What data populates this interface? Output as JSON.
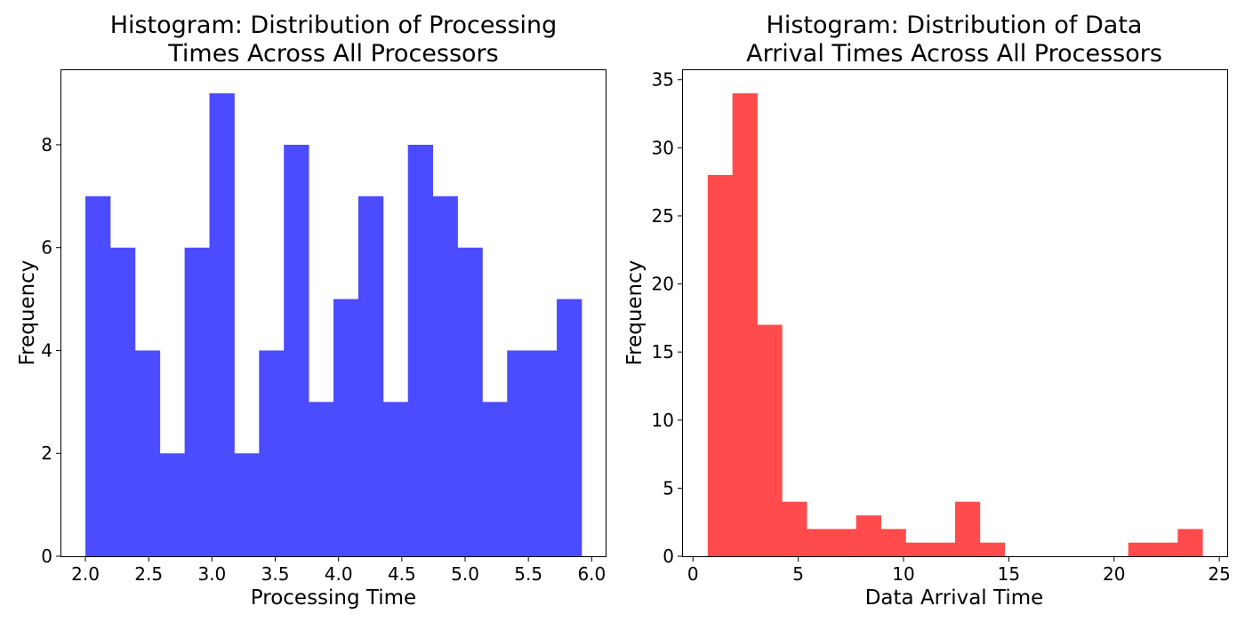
{
  "chart_data": [
    {
      "type": "bar",
      "title": "Histogram: Distribution of Processing Times Across All Processors",
      "title_lines": [
        "Histogram: Distribution of Processing",
        "Times Across All Processors"
      ],
      "xlabel": "Processing Time",
      "ylabel": "Frequency",
      "color": "#4b4bff",
      "bin_edges": [
        2.0,
        2.196,
        2.392,
        2.588,
        2.784,
        2.98,
        3.176,
        3.372,
        3.568,
        3.764,
        3.96,
        4.156,
        4.352,
        4.548,
        4.744,
        4.94,
        5.136,
        5.332,
        5.528,
        5.724,
        5.92
      ],
      "counts": [
        7,
        6,
        4,
        2,
        6,
        9,
        2,
        4,
        8,
        3,
        5,
        7,
        3,
        8,
        7,
        6,
        3,
        4,
        4,
        5
      ],
      "xlim": [
        1.81,
        6.11
      ],
      "ylim": [
        0,
        9.45
      ],
      "xticks": [
        2.0,
        2.5,
        3.0,
        3.5,
        4.0,
        4.5,
        5.0,
        5.5,
        6.0
      ],
      "xtick_labels": [
        "2.0",
        "2.5",
        "3.0",
        "3.5",
        "4.0",
        "4.5",
        "5.0",
        "5.5",
        "6.0"
      ],
      "yticks": [
        0,
        2,
        4,
        6,
        8
      ],
      "ytick_labels": [
        "0",
        "2",
        "4",
        "6",
        "8"
      ],
      "grid": false
    },
    {
      "type": "bar",
      "title": "Histogram: Distribution of Data Arrival Times Across All Processors",
      "title_lines": [
        "Histogram: Distribution of Data",
        "Arrival Times Across All Processors"
      ],
      "xlabel": "Data Arrival Time",
      "ylabel": "Frequency",
      "color": "#ff4b4b",
      "bin_edges": [
        0.7,
        1.875,
        3.05,
        4.225,
        5.4,
        6.575,
        7.75,
        8.925,
        10.1,
        11.275,
        12.45,
        13.625,
        14.8,
        15.975,
        17.15,
        18.325,
        19.5,
        20.675,
        21.85,
        23.025,
        24.2
      ],
      "counts": [
        28,
        34,
        17,
        4,
        2,
        2,
        3,
        2,
        1,
        1,
        4,
        1,
        0,
        0,
        0,
        0,
        0,
        1,
        1,
        2
      ],
      "xlim": [
        -0.475,
        25.375
      ],
      "ylim": [
        0,
        35.7
      ],
      "xticks": [
        0,
        5,
        10,
        15,
        20,
        25
      ],
      "xtick_labels": [
        "0",
        "5",
        "10",
        "15",
        "20",
        "25"
      ],
      "yticks": [
        0,
        5,
        10,
        15,
        20,
        25,
        30,
        35
      ],
      "ytick_labels": [
        "0",
        "5",
        "10",
        "15",
        "20",
        "25",
        "30",
        "35"
      ],
      "grid": false
    }
  ]
}
